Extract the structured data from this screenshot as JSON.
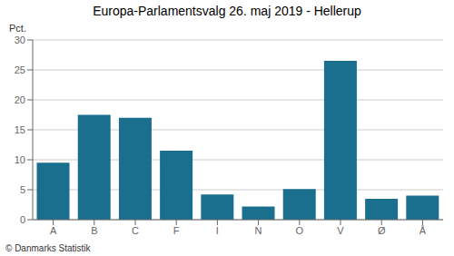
{
  "chart_data": {
    "type": "bar",
    "title": "Europa-Parlamentsvalg 26. maj 2019 - Hellerup",
    "ylabel": "Pct.",
    "footer": "© Danmarks Statistik",
    "categories": [
      "A",
      "B",
      "C",
      "F",
      "I",
      "N",
      "O",
      "V",
      "Ø",
      "Å"
    ],
    "values": [
      9.5,
      17.5,
      17.0,
      11.5,
      4.2,
      2.2,
      5.1,
      26.5,
      3.5,
      4.0
    ],
    "color": "#1a6e8e",
    "ylim": [
      0,
      30
    ],
    "yticks": [
      0,
      5,
      10,
      15,
      20,
      25,
      30
    ],
    "grid": true
  }
}
